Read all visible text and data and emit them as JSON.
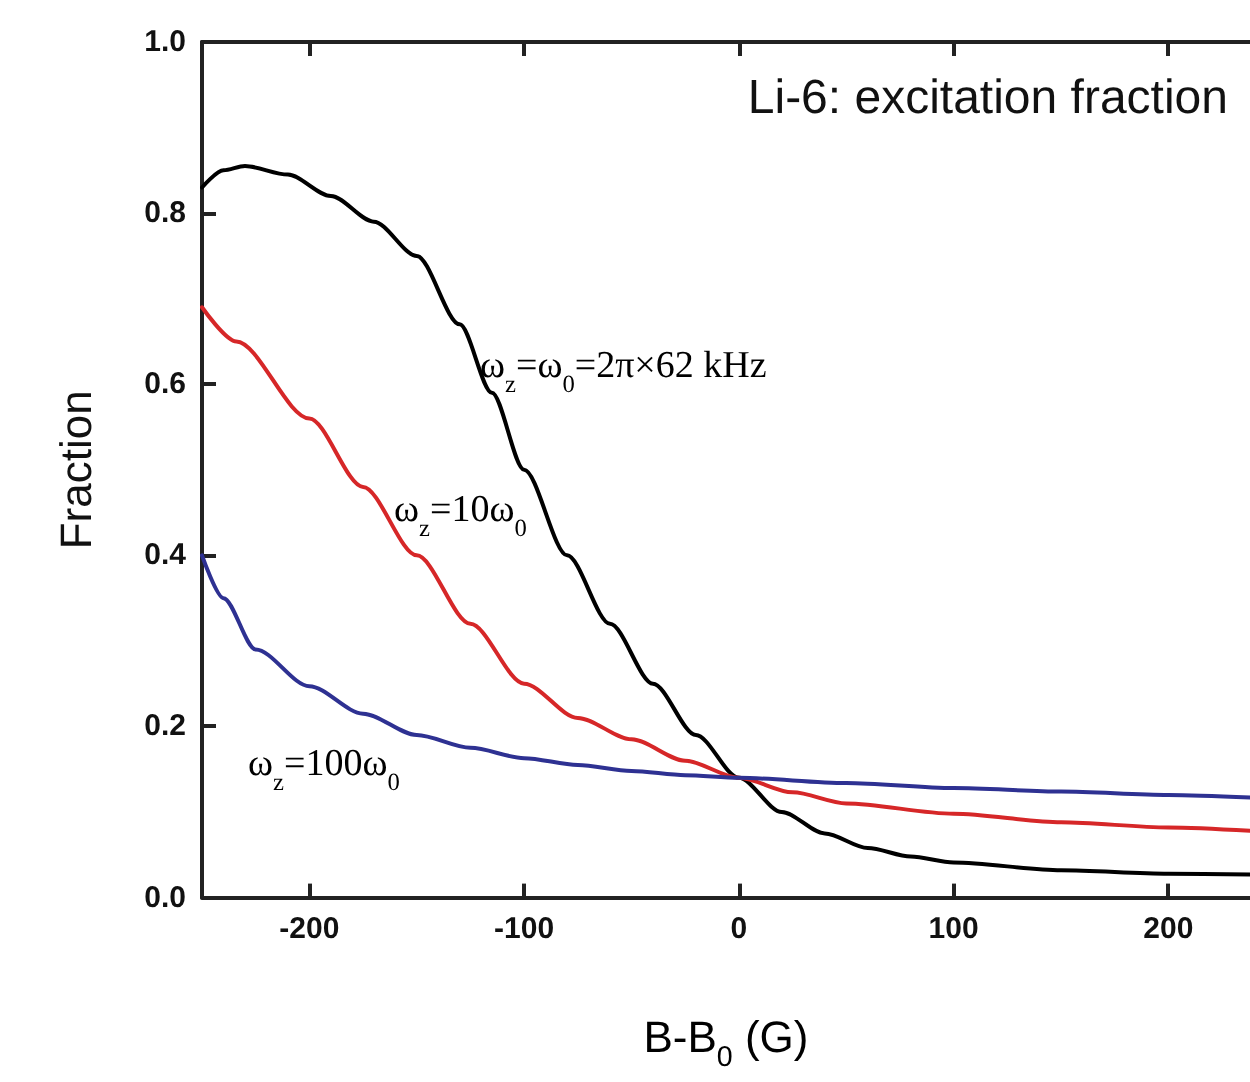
{
  "chart_data": {
    "type": "line",
    "title": "Li-6: excitation fraction",
    "xlabel": "B-B$_{0}$ (G)",
    "ylabel": "Fraction",
    "xlim": [
      -250,
      238
    ],
    "xticks": [
      -200,
      -100,
      0,
      100,
      200
    ],
    "ylim": [
      0,
      1
    ],
    "yticks": [
      {
        "value": 0,
        "label": "0.0"
      },
      0.2,
      0.4,
      0.6,
      0.8,
      {
        "value": 1,
        "label": "1.0"
      }
    ],
    "grid": false,
    "marker": "none",
    "line_style": "solid",
    "series": [
      {
        "color": "#000000",
        "x": [
          -250,
          -240,
          -230,
          -210,
          -190,
          -170,
          -150,
          -130,
          -115,
          -100,
          -80,
          -60,
          -40,
          -20,
          0,
          20,
          40,
          60,
          80,
          100,
          150,
          200,
          238
        ],
        "values": [
          0.83,
          0.85,
          0.855,
          0.845,
          0.82,
          0.79,
          0.75,
          0.67,
          0.59,
          0.5,
          0.4,
          0.32,
          0.25,
          0.19,
          0.14,
          0.1,
          0.075,
          0.058,
          0.048,
          0.041,
          0.032,
          0.028,
          0.027
        ]
      },
      {
        "color": "#d62728",
        "x": [
          -250,
          -234,
          -200,
          -175,
          -150,
          -125,
          -100,
          -75,
          -50,
          -25,
          0,
          25,
          50,
          100,
          150,
          200,
          238
        ],
        "values": [
          0.69,
          0.65,
          0.56,
          0.48,
          0.4,
          0.32,
          0.25,
          0.21,
          0.185,
          0.16,
          0.14,
          0.123,
          0.11,
          0.098,
          0.088,
          0.082,
          0.078
        ]
      },
      {
        "color": "#2e3192",
        "x": [
          -250,
          -240,
          -225,
          -200,
          -175,
          -150,
          -125,
          -100,
          -75,
          -50,
          -25,
          0,
          50,
          100,
          150,
          200,
          238
        ],
        "values": [
          0.4,
          0.35,
          0.29,
          0.247,
          0.215,
          0.19,
          0.175,
          0.163,
          0.155,
          0.148,
          0.143,
          0.14,
          0.134,
          0.128,
          0.124,
          0.12,
          0.117
        ]
      }
    ],
    "annotations": [
      "ω$_{z}$=ω$_{0}$=2π×62 kHz",
      "ω$_{z}$=10ω$_{0}$",
      "ω$_{z}$=100ω$_{0}$"
    ]
  }
}
